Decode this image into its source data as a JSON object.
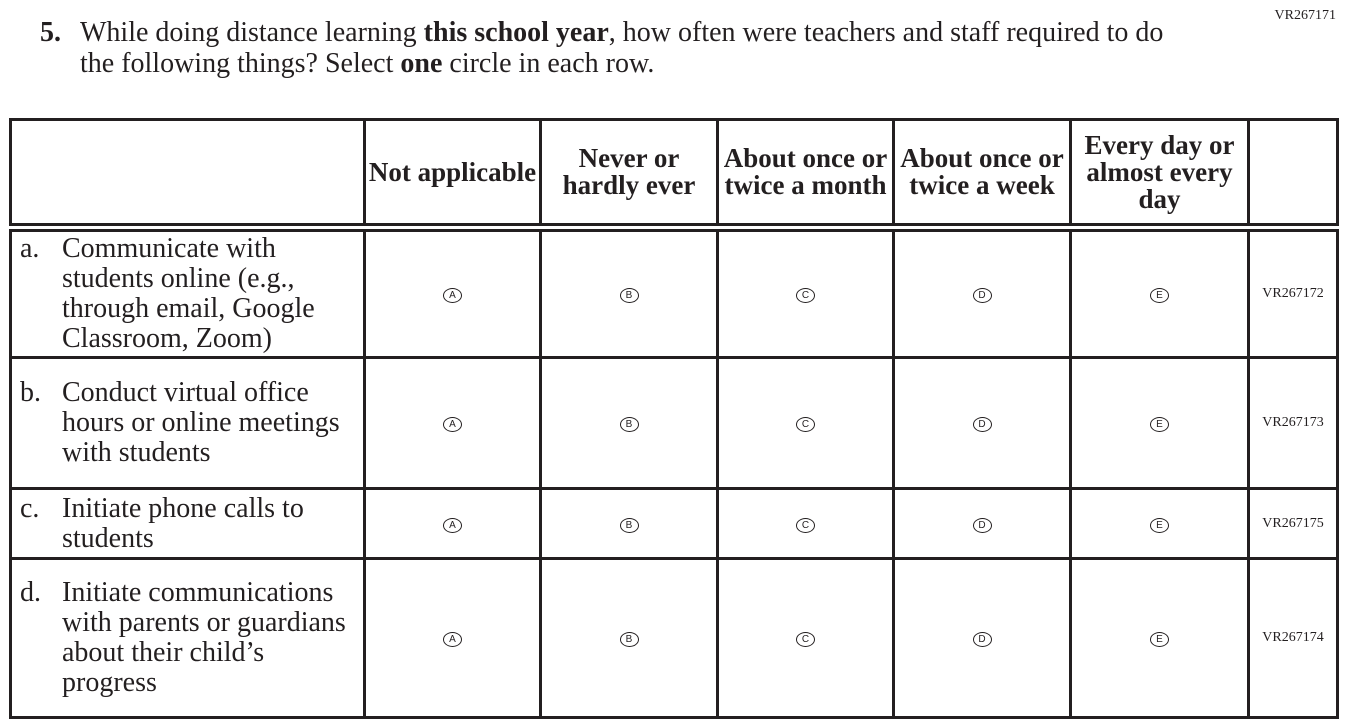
{
  "form_code": "VR267171",
  "question": {
    "number": "5.",
    "text_parts": [
      "While doing distance learning ",
      "this school year",
      ", how often were teachers and staff required to do the following things? Select ",
      "one",
      " circle in each row."
    ]
  },
  "columns": [
    "Not applicable",
    "Never or hardly ever",
    "About once or twice a month",
    "About once or twice a week",
    "Every day or almost every day"
  ],
  "options": [
    "A",
    "B",
    "C",
    "D",
    "E"
  ],
  "rows": [
    {
      "letter": "a.",
      "text": "Communicate with students online (e.g., through email, Google Classroom, Zoom)",
      "code": "VR267172"
    },
    {
      "letter": "b.",
      "text": "Conduct virtual office hours or online meetings with students",
      "code": "VR267173"
    },
    {
      "letter": "c.",
      "text": "Initiate phone calls to students",
      "code": "VR267175"
    },
    {
      "letter": "d.",
      "text": "Initiate communications with parents or guardians about their child’s progress",
      "code": "VR267174"
    }
  ]
}
